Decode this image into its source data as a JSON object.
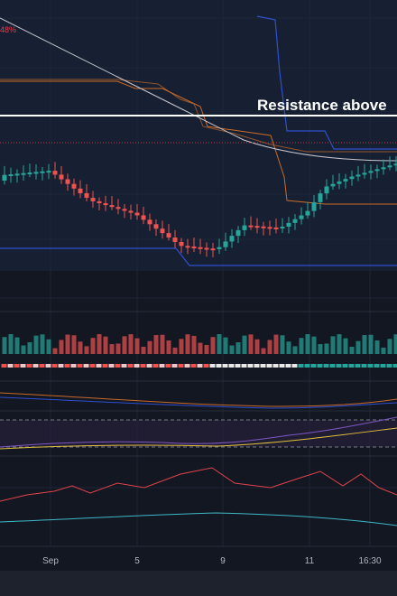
{
  "chart": {
    "top_label": "48%",
    "annotation": "Resistance above",
    "x_labels": [
      "Sep",
      "5",
      "9",
      "11",
      "16:30"
    ]
  }
}
